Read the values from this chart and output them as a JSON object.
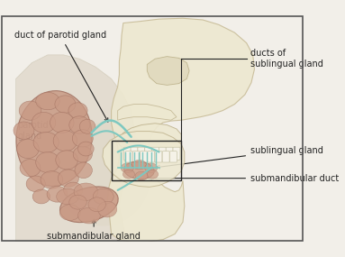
{
  "figsize": [
    3.83,
    2.85
  ],
  "dpi": 100,
  "background_color": "#f2efe9",
  "border_color": "#555555",
  "labels": {
    "duct_of_parotid": "duct of parotid gland",
    "parotid": "parotid\ngland",
    "ducts_sublingual": "ducts of\nsublingual gland",
    "sublingual": "sublingual gland",
    "submandibular_duct": "submandibular duct",
    "submandibular": "submandibular gland"
  },
  "gland_colors": {
    "parotid": "#c99a85",
    "sublingual": "#c99a85",
    "submandibular": "#c99a85",
    "duct": "#7ec8c0",
    "bone_light": "#ede8d0",
    "bone_mid": "#ddd5b8",
    "bone_dark": "#ccc0a0",
    "skin": "#ddd5c0",
    "neck_skin": "#d5cbb8"
  },
  "font_size": 7,
  "font_size_small": 6.5,
  "line_color": "#222222",
  "line_width": 0.7
}
